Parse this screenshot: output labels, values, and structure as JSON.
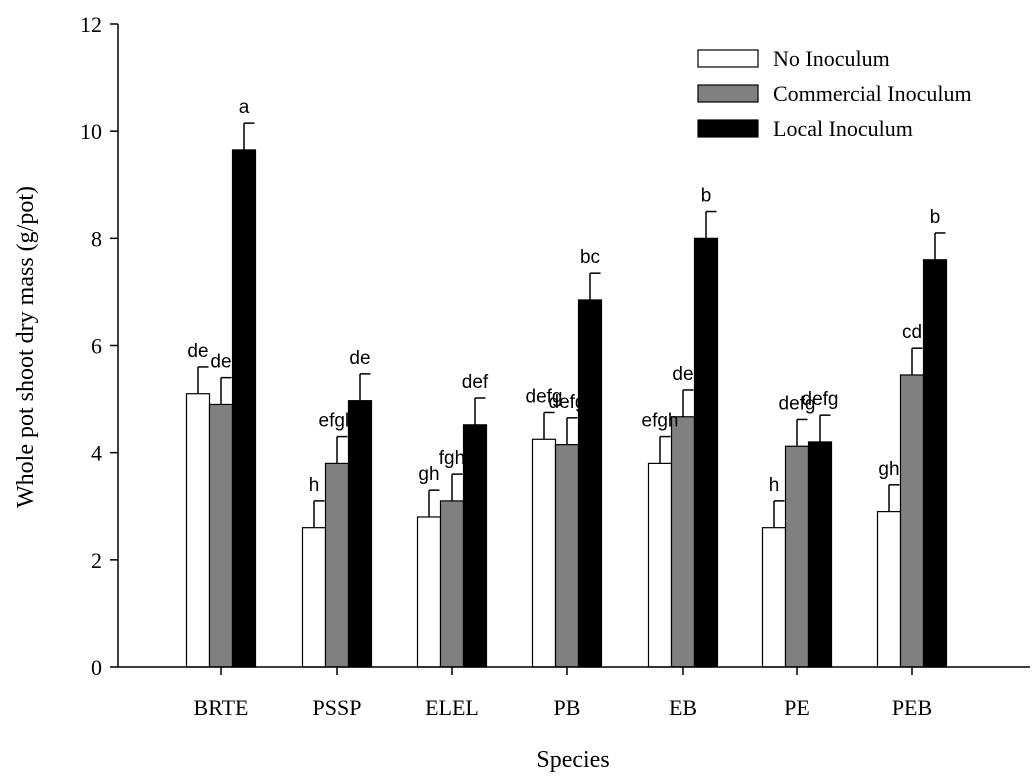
{
  "chart_data": {
    "type": "bar",
    "xlabel": "Species",
    "ylabel": "Whole pot shoot dry mass (g/pot)",
    "ylim": [
      0,
      12
    ],
    "yticks": [
      0,
      2,
      4,
      6,
      8,
      10,
      12
    ],
    "categories": [
      "BRTE",
      "PSSP",
      "ELEL",
      "PB",
      "EB",
      "PE",
      "PEB"
    ],
    "legend_position": "top-right",
    "series": [
      {
        "name": "No Inoculum",
        "color": "#ffffff",
        "values": [
          5.1,
          2.6,
          2.8,
          4.25,
          3.8,
          2.6,
          2.9
        ],
        "errors": [
          0.5,
          0.5,
          0.5,
          0.5,
          0.5,
          0.5,
          0.5
        ],
        "sig": [
          "de",
          "h",
          "gh",
          "defg",
          "efgh",
          "h",
          "gh"
        ]
      },
      {
        "name": "Commercial Inoculum",
        "color": "#808080",
        "values": [
          4.9,
          3.8,
          3.1,
          4.15,
          4.67,
          4.12,
          5.45
        ],
        "errors": [
          0.5,
          0.5,
          0.5,
          0.5,
          0.5,
          0.5,
          0.5
        ],
        "sig": [
          "de",
          "efgh",
          "fgh",
          "defg",
          "de",
          "defg",
          "cd"
        ]
      },
      {
        "name": "Local Inoculum",
        "color": "#000000",
        "values": [
          9.65,
          4.97,
          4.52,
          6.85,
          8.0,
          4.2,
          7.6
        ],
        "errors": [
          0.5,
          0.5,
          0.5,
          0.5,
          0.5,
          0.5,
          0.5
        ],
        "sig": [
          "a",
          "de",
          "def",
          "bc",
          "b",
          "defg",
          "b"
        ]
      }
    ]
  }
}
